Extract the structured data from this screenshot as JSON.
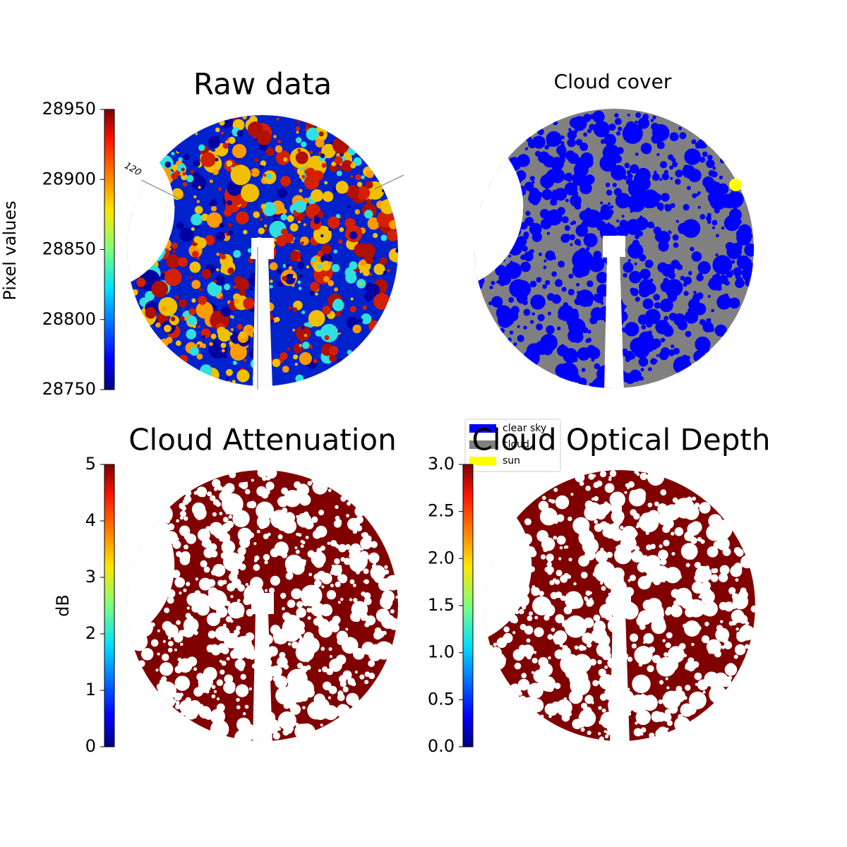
{
  "chart_data": [
    {
      "type": "image",
      "title": "Raw data",
      "colormap": "jet",
      "annotations": [
        "120"
      ],
      "colorbar": {
        "label": "Pixel values",
        "lim": [
          28750,
          28950
        ],
        "ticks": [
          28750,
          28800,
          28850,
          28900,
          28950
        ]
      }
    },
    {
      "type": "image",
      "title": "Cloud cover",
      "series": [
        {
          "name": "clear sky",
          "color": "#0000ff"
        },
        {
          "name": "cloud",
          "color": "#808080"
        },
        {
          "name": "sun",
          "color": "#ffff00"
        }
      ]
    },
    {
      "type": "image",
      "title": "Cloud Attenuation",
      "colormap": "jet",
      "colorbar": {
        "label": "dB",
        "lim": [
          0,
          5
        ],
        "ticks": [
          0,
          1,
          2,
          3,
          4,
          5
        ]
      }
    },
    {
      "type": "image",
      "title": "Cloud Optical Depth",
      "colormap": "jet",
      "colorbar": {
        "lim": [
          0,
          3
        ],
        "ticks": [
          {
            "value": 0,
            "label": "0.0"
          },
          {
            "value": 0.5,
            "label": "0.5"
          },
          {
            "value": 1,
            "label": "1.0"
          },
          {
            "value": 1.5,
            "label": "1.5"
          },
          {
            "value": 2,
            "label": "2.0"
          },
          {
            "value": 2.5,
            "label": "2.5"
          },
          {
            "value": 3,
            "label": "3.0"
          }
        ]
      }
    }
  ]
}
